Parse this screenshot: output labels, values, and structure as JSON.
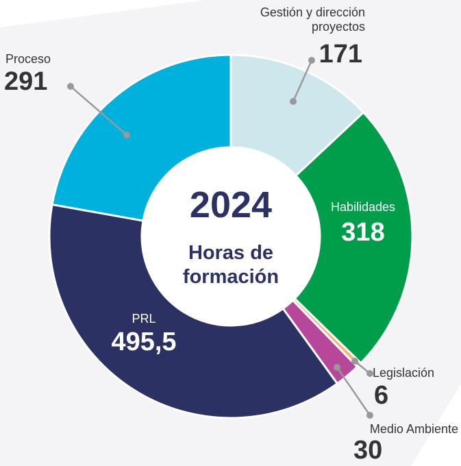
{
  "chart_data": {
    "type": "donut",
    "center_title": "2024",
    "center_subtitle": "Horas de formación",
    "categories": [
      "Gestión y dirección proyectos",
      "Habilidades",
      "Legislación",
      "Medio Ambiente",
      "PRL",
      "Proceso"
    ],
    "values": [
      171,
      318,
      6,
      30,
      495.5,
      291
    ],
    "value_labels": [
      "171",
      "318",
      "6",
      "30",
      "495,5",
      "291"
    ],
    "colors": [
      "#cde7ed",
      "#009e4a",
      "#f0b47c",
      "#b6479a",
      "#2b3263",
      "#00b1de"
    ]
  }
}
